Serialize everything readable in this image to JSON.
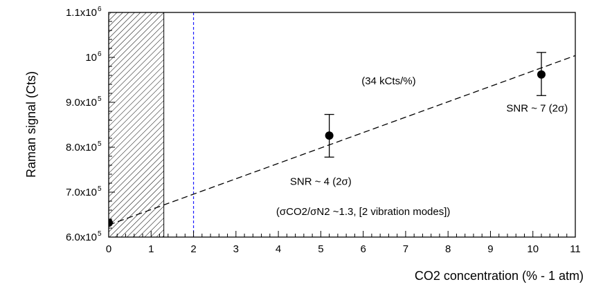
{
  "chart_data": {
    "type": "scatter",
    "title": "",
    "xlabel": "CO2 concentration (% - 1 atm)",
    "ylabel": "Raman signal (Cts)",
    "xlim": [
      0,
      11
    ],
    "ylim": [
      600000,
      1100000
    ],
    "x_ticks": [
      0,
      1,
      2,
      3,
      4,
      5,
      6,
      7,
      8,
      9,
      10,
      11
    ],
    "y_ticks": [
      {
        "value": 600000,
        "label": "6.0x10",
        "exp": "5"
      },
      {
        "value": 700000,
        "label": "7.0x10",
        "exp": "5"
      },
      {
        "value": 800000,
        "label": "8.0x10",
        "exp": "5"
      },
      {
        "value": 900000,
        "label": "9.0x10",
        "exp": "5"
      },
      {
        "value": 1000000,
        "label": "10",
        "exp": "6"
      },
      {
        "value": 1100000,
        "label": "1.1x10",
        "exp": "6"
      }
    ],
    "points": [
      {
        "x": 0,
        "y": 632000
      },
      {
        "x": 5.2,
        "y": 826000,
        "err_low": 778000,
        "err_high": 873000
      },
      {
        "x": 10.2,
        "y": 962000,
        "err_low": 915000,
        "err_high": 1011000
      }
    ],
    "fit_line": {
      "x": [
        0,
        11
      ],
      "y": [
        627000,
        1004000
      ],
      "style": "dashed"
    },
    "vertical_marker": {
      "x": 2.0,
      "color": "#1a1aff",
      "style": "dashed"
    },
    "hatched_region": {
      "x": [
        0,
        1.3
      ]
    },
    "annotations": [
      {
        "text": "(34 kCts/%)",
        "x": 6.6,
        "y": 940000
      },
      {
        "text": "SNR ~ 7 (2σ)",
        "x": 10.1,
        "y": 879000
      },
      {
        "text": "SNR ~ 4 (2σ)",
        "x": 5.0,
        "y": 716000
      },
      {
        "text": "(σCO2/σN2 ~1.3,     [2 vibration modes])",
        "x": 6.0,
        "y": 649000
      }
    ]
  }
}
